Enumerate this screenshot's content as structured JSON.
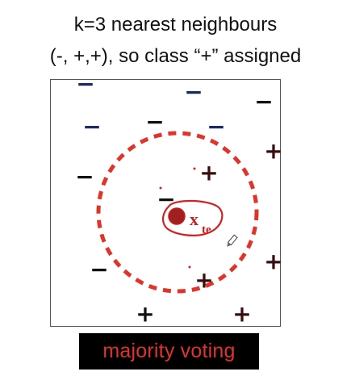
{
  "title": {
    "line1": "k=3 nearest neighbours",
    "line2": "(-, +,+), so class “+” assigned"
  },
  "diagram": {
    "query_label": "x",
    "query_subscript": "te",
    "points": [
      {
        "sign": "−",
        "color": "#1a2a66"
      },
      {
        "sign": "−",
        "color": "#1a2a66"
      },
      {
        "sign": "−",
        "color": "#111111"
      },
      {
        "sign": "−",
        "color": "#1a2a66"
      },
      {
        "sign": "−",
        "color": "#111111"
      },
      {
        "sign": "−",
        "color": "#1a2a66"
      },
      {
        "sign": "+",
        "color": "#3a0d0d"
      },
      {
        "sign": "−",
        "color": "#111111"
      },
      {
        "sign": "+",
        "color": "#3a0d0d"
      },
      {
        "sign": "−",
        "color": "#111111"
      },
      {
        "sign": "−",
        "color": "#111111"
      },
      {
        "sign": "+",
        "color": "#3a0d0d"
      },
      {
        "sign": "+",
        "color": "#3a0d0d"
      },
      {
        "sign": "+",
        "color": "#111111"
      },
      {
        "sign": "+",
        "color": "#3a0d0d"
      }
    ],
    "circle_color": "#e0332a",
    "query_color": "#c81e1e"
  },
  "banner": {
    "text": "majority voting",
    "text_color": "#e0332a",
    "background": "#000000"
  }
}
